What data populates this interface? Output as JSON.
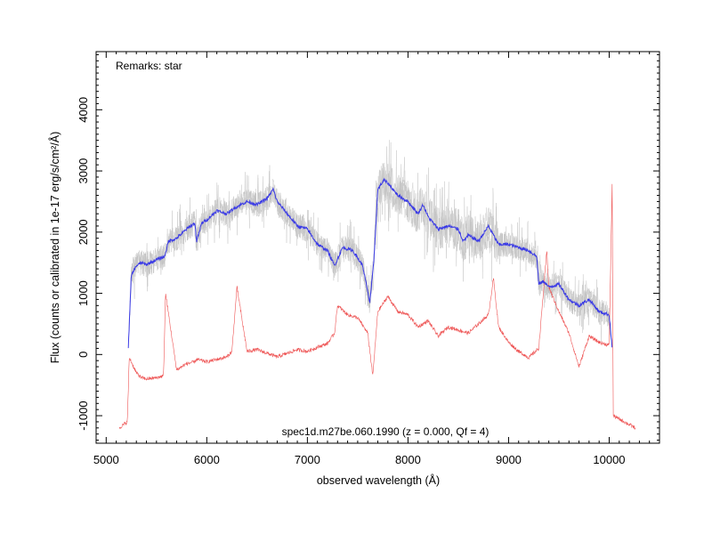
{
  "chart_data": {
    "type": "line",
    "title": "",
    "remark": "Remarks: star",
    "object_label": "spec1d.m27be.060.1990 (z = 0.000, Qf = 4)",
    "xlabel": "observed wavelength (Å)",
    "ylabel": "Flux (counts or calibrated in 1e-17 erg/s/cm²/Å)",
    "xlim": [
      4900,
      10500
    ],
    "ylim": [
      -1450,
      4950
    ],
    "xticks": [
      5000,
      6000,
      7000,
      8000,
      9000,
      10000
    ],
    "yticks": [
      -1000,
      0,
      1000,
      2000,
      3000,
      4000
    ],
    "xtick_labels": [
      "5000",
      "6000",
      "7000",
      "8000",
      "9000",
      "10000"
    ],
    "ytick_labels": [
      "-1000",
      "0",
      "1000",
      "2000",
      "3000",
      "4000"
    ],
    "grid": false,
    "colors": {
      "raw": "#bdbdbd",
      "smoothed": "#3a3ae6",
      "error": "#ee5555"
    },
    "series": [
      {
        "role": "smoothed flux",
        "x": [
          5220,
          5250,
          5300,
          5350,
          5400,
          5500,
          5580,
          5620,
          5700,
          5800,
          5880,
          5900,
          5950,
          6000,
          6100,
          6200,
          6280,
          6400,
          6500,
          6600,
          6660,
          6700,
          6800,
          6900,
          7000,
          7100,
          7200,
          7270,
          7350,
          7450,
          7550,
          7620,
          7660,
          7700,
          7760,
          7800,
          7900,
          8000,
          8100,
          8150,
          8200,
          8300,
          8400,
          8500,
          8550,
          8600,
          8700,
          8800,
          8850,
          8900,
          9000,
          9100,
          9200,
          9280,
          9300,
          9350,
          9400,
          9500,
          9600,
          9700,
          9800,
          9900,
          10000,
          10030
        ],
        "y": [
          100,
          1300,
          1450,
          1500,
          1470,
          1550,
          1600,
          1850,
          1900,
          2050,
          2150,
          1850,
          2150,
          2200,
          2350,
          2300,
          2400,
          2500,
          2450,
          2550,
          2700,
          2500,
          2300,
          2100,
          2050,
          1800,
          1700,
          1450,
          1750,
          1700,
          1450,
          850,
          1500,
          2700,
          2850,
          2800,
          2600,
          2500,
          2300,
          2450,
          2250,
          2050,
          2100,
          2050,
          1850,
          1950,
          1850,
          2100,
          1950,
          1800,
          1800,
          1750,
          1700,
          1600,
          1150,
          1200,
          1100,
          1150,
          900,
          800,
          900,
          700,
          650,
          100
        ]
      },
      {
        "role": "error",
        "x": [
          5130,
          5210,
          5230,
          5300,
          5350,
          5400,
          5500,
          5570,
          5590,
          5700,
          5800,
          5880,
          5900,
          6000,
          6100,
          6200,
          6250,
          6300,
          6400,
          6500,
          6600,
          6700,
          6800,
          6900,
          7000,
          7100,
          7200,
          7270,
          7300,
          7400,
          7500,
          7600,
          7650,
          7700,
          7800,
          7900,
          8000,
          8100,
          8200,
          8300,
          8400,
          8500,
          8600,
          8700,
          8800,
          8850,
          8900,
          9000,
          9100,
          9200,
          9300,
          9380,
          9400,
          9500,
          9600,
          9700,
          9800,
          9900,
          10000,
          10030,
          10040,
          10260
        ],
        "y": [
          -1200,
          -1100,
          -50,
          -300,
          -380,
          -400,
          -380,
          -350,
          1000,
          -250,
          -150,
          -120,
          -80,
          -120,
          -80,
          -40,
          50,
          1100,
          50,
          80,
          20,
          -40,
          20,
          80,
          50,
          120,
          180,
          350,
          800,
          650,
          600,
          350,
          -350,
          700,
          950,
          700,
          650,
          450,
          550,
          300,
          450,
          400,
          350,
          500,
          650,
          1250,
          450,
          200,
          50,
          -50,
          100,
          1700,
          1100,
          700,
          350,
          -200,
          300,
          200,
          150,
          2850,
          -1000,
          -1200
        ]
      }
    ]
  }
}
